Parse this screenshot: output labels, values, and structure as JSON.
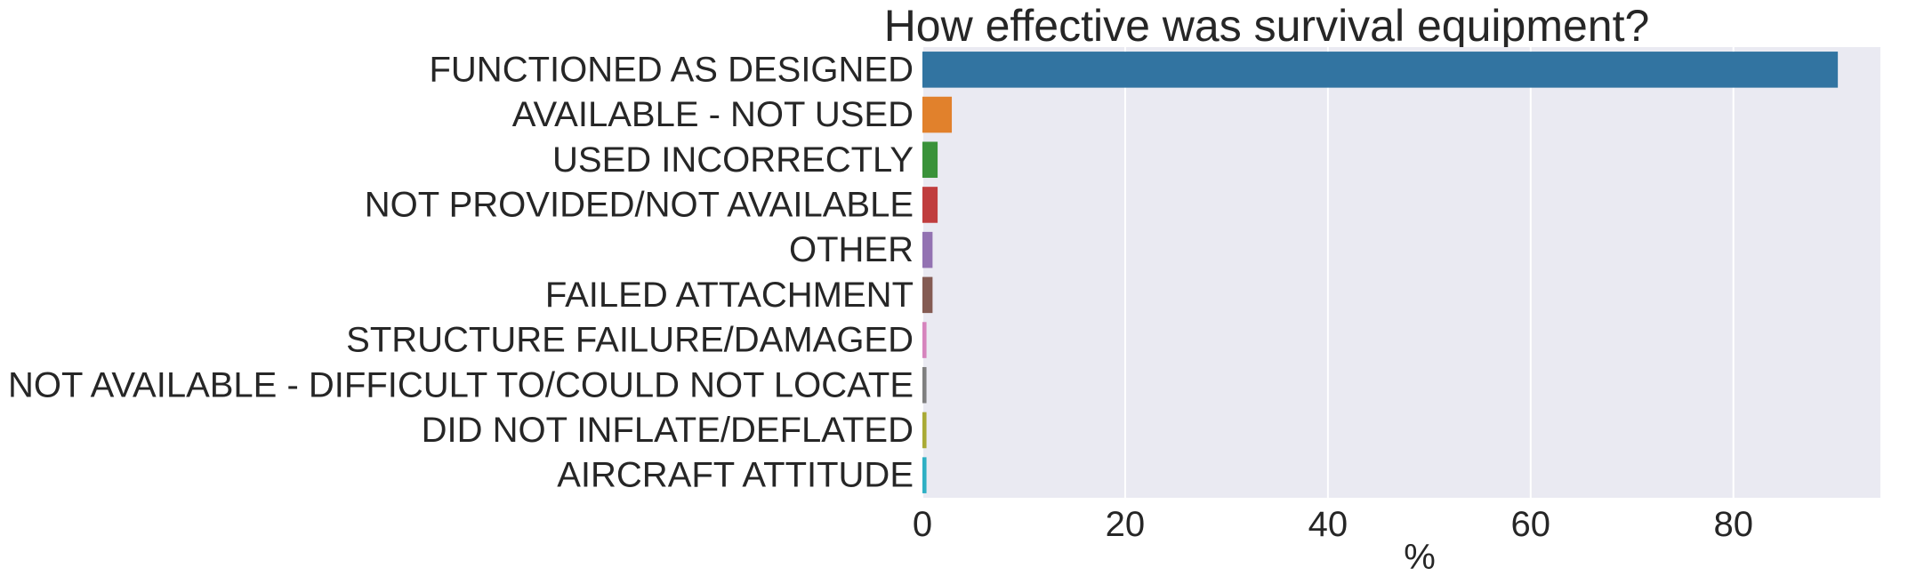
{
  "chart_data": {
    "type": "bar",
    "orientation": "horizontal",
    "title": "How effective was survival equipment?",
    "xlabel": "%",
    "ylabel": "",
    "xlim": [
      0,
      94.5
    ],
    "xticks": [
      0,
      20,
      40,
      60,
      80
    ],
    "grid": true,
    "categories": [
      "FUNCTIONED AS DESIGNED",
      "AVAILABLE - NOT USED",
      "USED INCORRECTLY",
      "NOT PROVIDED/NOT AVAILABLE",
      "OTHER",
      "FAILED ATTACHMENT",
      "STRUCTURE FAILURE/DAMAGED",
      "NOT AVAILABLE - DIFFICULT TO/COULD NOT LOCATE",
      "DID NOT INFLATE/DEFLATED",
      "AIRCRAFT ATTITUDE"
    ],
    "values": [
      90.3,
      2.9,
      1.5,
      1.5,
      1.0,
      1.0,
      0.4,
      0.4,
      0.4,
      0.4
    ],
    "colors": [
      "#3274a1",
      "#e1812c",
      "#3a923a",
      "#c03d3e",
      "#9372b2",
      "#845b53",
      "#d684bd",
      "#7f7f7f",
      "#a9aa35",
      "#2eb0c4"
    ],
    "plot_background": "#eaeaf2",
    "grid_color": "#ffffff"
  }
}
